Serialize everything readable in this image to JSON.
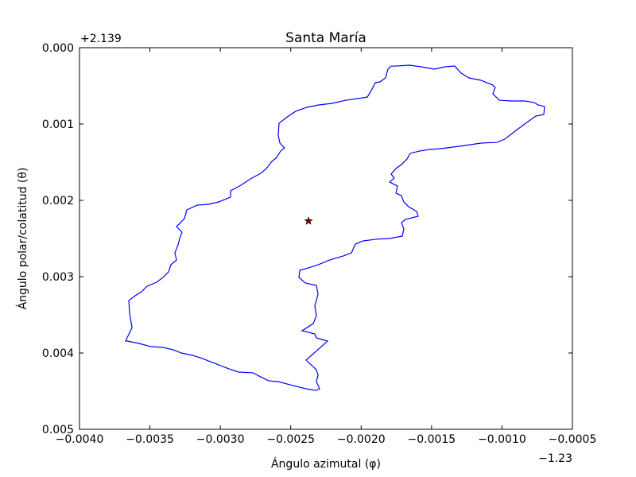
{
  "chart_data": {
    "type": "line",
    "title": "Santa María",
    "x_label": "Ángulo azimutal (φ)",
    "y_label": "Ángulo polar/colatitud (θ)",
    "x_offset": "−1.23",
    "y_offset": "+2.139",
    "xlim": [
      -0.004,
      -0.0005
    ],
    "ylim": [
      0.005,
      0
    ],
    "xticks": [
      {
        "value": -0.004,
        "label": "−0.0040"
      },
      {
        "value": -0.0035,
        "label": "−0.0035"
      },
      {
        "value": -0.003,
        "label": "−0.0030"
      },
      {
        "value": -0.0025,
        "label": "−0.0025"
      },
      {
        "value": -0.002,
        "label": "−0.0020"
      },
      {
        "value": -0.0015,
        "label": "−0.0015"
      },
      {
        "value": -0.001,
        "label": "−0.0010"
      },
      {
        "value": -0.0005,
        "label": "−0.0005"
      }
    ],
    "yticks": [
      {
        "value": 0,
        "label": "0.000"
      },
      0.001,
      0.002,
      0.003,
      0.004,
      0.005
    ],
    "grid": false,
    "series": [
      {
        "color": "#0000ff",
        "marker": "none",
        "x": [
          -0.002323,
          -0.002391,
          -0.002504,
          -0.002589,
          -0.002656,
          -0.002713,
          -0.002769,
          -0.002871,
          -0.002939,
          -0.003012,
          -0.003085,
          -0.003125,
          -0.003198,
          -0.003277,
          -0.003334,
          -0.003407,
          -0.003492,
          -0.003577,
          -0.003661,
          -0.003673,
          -0.003627,
          -0.003644,
          -0.00365,
          -0.003605,
          -0.00356,
          -0.00352,
          -0.003452,
          -0.003407,
          -0.003368,
          -0.003351,
          -0.003311,
          -0.003323,
          -0.0033,
          -0.003289,
          -0.003272,
          -0.003311,
          -0.003255,
          -0.003238,
          -0.003165,
          -0.003085,
          -0.003012,
          -0.002927,
          -0.002927,
          -0.002854,
          -0.002786,
          -0.002713,
          -0.002673,
          -0.002634,
          -0.0026,
          -0.002572,
          -0.002544,
          -0.002577,
          -0.002589,
          -0.002583,
          -0.002532,
          -0.002465,
          -0.002386,
          -0.002301,
          -0.002205,
          -0.002109,
          -0.002024,
          -0.001956,
          -0.001923,
          -0.0019,
          -0.001866,
          -0.001827,
          -0.00181,
          -0.001787,
          -0.001753,
          -0.001657,
          -0.001573,
          -0.001482,
          -0.001403,
          -0.001336,
          -0.00129,
          -0.001234,
          -0.001149,
          -0.001065,
          -0.001048,
          -0.001065,
          -0.001019,
          -0.000935,
          -0.000839,
          -0.000771,
          -0.000743,
          -0.000698,
          -0.000703,
          -0.00076,
          -0.000839,
          -0.000907,
          -0.00098,
          -0.001036,
          -0.001149,
          -0.001262,
          -0.001347,
          -0.001437,
          -0.001516,
          -0.001584,
          -0.001652,
          -0.001674,
          -0.001714,
          -0.001753,
          -0.001787,
          -0.001765,
          -0.001798,
          -0.001742,
          -0.001753,
          -0.001714,
          -0.001697,
          -0.001663,
          -0.001606,
          -0.001595,
          -0.001686,
          -0.001714,
          -0.001697,
          -0.001708,
          -0.001798,
          -0.001894,
          -0.001985,
          -0.002041,
          -0.002069,
          -0.002126,
          -0.002222,
          -0.002306,
          -0.002374,
          -0.002436,
          -0.002442,
          -0.002397,
          -0.002318,
          -0.002306,
          -0.002329,
          -0.002318,
          -0.00234,
          -0.002419,
          -0.002329,
          -0.002318,
          -0.002239,
          -0.002391,
          -0.002318,
          -0.002306,
          -0.002318,
          -0.002295,
          -0.002323
        ],
        "values": [
          0.00449,
          0.004469,
          0.004417,
          0.004375,
          0.004365,
          0.004313,
          0.00426,
          0.00425,
          0.004208,
          0.004156,
          0.004104,
          0.004073,
          0.004031,
          0.004,
          0.003958,
          0.003927,
          0.003917,
          0.003875,
          0.003844,
          0.003844,
          0.003667,
          0.003479,
          0.003313,
          0.00325,
          0.003198,
          0.003125,
          0.003073,
          0.00301,
          0.002938,
          0.002844,
          0.002781,
          0.002688,
          0.002583,
          0.0025,
          0.002417,
          0.002344,
          0.00224,
          0.002125,
          0.002063,
          0.002052,
          0.002021,
          0.001958,
          0.001875,
          0.001802,
          0.001719,
          0.001646,
          0.001583,
          0.00149,
          0.001438,
          0.001354,
          0.001313,
          0.00125,
          0.001146,
          0.00099,
          0.000917,
          0.000833,
          0.000781,
          0.00075,
          0.000729,
          0.000688,
          0.000667,
          0.000646,
          0.000542,
          0.000458,
          0.000448,
          0.000396,
          0.000281,
          0.00024,
          0.00024,
          0.000229,
          0.00025,
          0.000281,
          0.00025,
          0.00024,
          0.000333,
          0.000396,
          0.000427,
          0.00049,
          0.000521,
          0.000604,
          0.000688,
          0.000698,
          0.000698,
          0.000719,
          0.00075,
          0.000771,
          0.000875,
          0.000896,
          0.001,
          0.001094,
          0.001198,
          0.00124,
          0.00125,
          0.001281,
          0.001302,
          0.001323,
          0.001333,
          0.001354,
          0.001385,
          0.001458,
          0.001531,
          0.001583,
          0.001656,
          0.001708,
          0.00176,
          0.001813,
          0.001906,
          0.001938,
          0.002021,
          0.002083,
          0.002146,
          0.002208,
          0.00225,
          0.002292,
          0.002375,
          0.002469,
          0.0025,
          0.00251,
          0.002531,
          0.002573,
          0.002688,
          0.002729,
          0.002781,
          0.002844,
          0.002885,
          0.002917,
          0.00301,
          0.003083,
          0.003115,
          0.003229,
          0.003385,
          0.00351,
          0.003615,
          0.003708,
          0.00375,
          0.003802,
          0.003844,
          0.004094,
          0.004219,
          0.004292,
          0.004375,
          0.004469,
          0.00449
        ]
      },
      {
        "color": "#8b0000",
        "marker": "star",
        "x": [
          -0.002374
        ],
        "values": [
          0.002271
        ]
      }
    ]
  }
}
